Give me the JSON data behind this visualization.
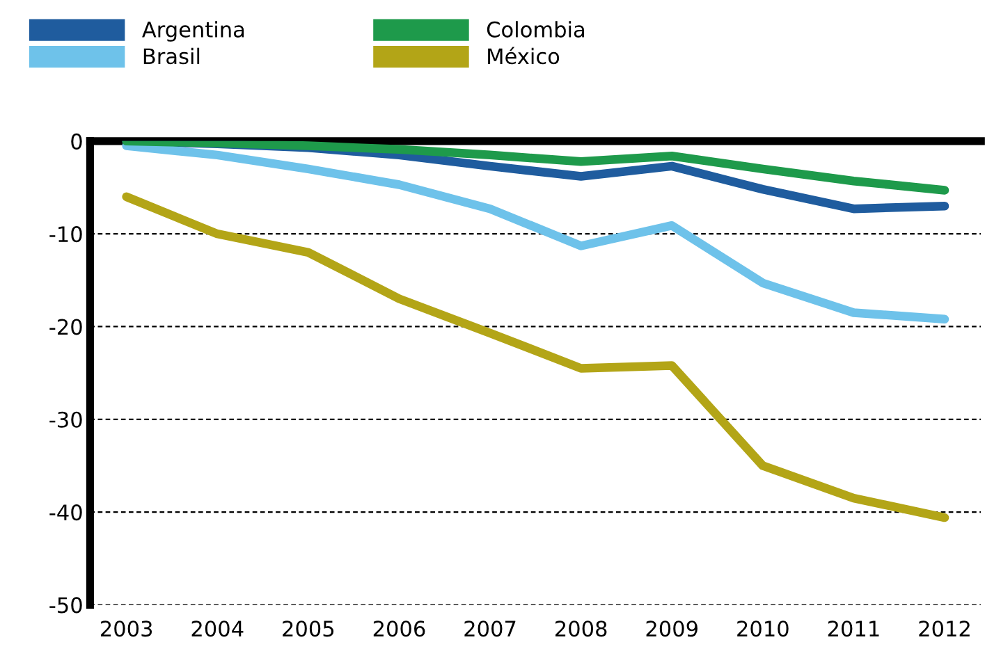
{
  "chart_data": {
    "type": "line",
    "categories": [
      "2003",
      "2004",
      "2005",
      "2006",
      "2007",
      "2008",
      "2009",
      "2010",
      "2011",
      "2012"
    ],
    "series": [
      {
        "name": "Argentina",
        "color": "#1f5c9e",
        "values": [
          0,
          -0.3,
          -0.7,
          -1.5,
          -2.7,
          -3.8,
          -2.7,
          -5.2,
          -7.3,
          -7.0
        ]
      },
      {
        "name": "Brasil",
        "color": "#6ec2ea",
        "values": [
          -0.5,
          -1.5,
          -3,
          -4.7,
          -7.3,
          -11.3,
          -9.1,
          -15.3,
          -18.5,
          -19.2
        ]
      },
      {
        "name": "Colombia",
        "color": "#1e9a4b",
        "values": [
          0,
          -0.2,
          -0.5,
          -0.9,
          -1.5,
          -2.2,
          -1.6,
          -3,
          -4.3,
          -5.3
        ]
      },
      {
        "name": "México",
        "color": "#b3a517",
        "values": [
          -6,
          -10,
          -12,
          -17,
          -20.7,
          -24.5,
          -24.2,
          -35,
          -38.5,
          -40.6
        ]
      }
    ],
    "ylim": [
      -50,
      0
    ],
    "yticks": [
      -50,
      -40,
      -30,
      -20,
      -10,
      0
    ],
    "grid": "y",
    "legend": "top left",
    "marker": "none",
    "line_style": "solid"
  }
}
